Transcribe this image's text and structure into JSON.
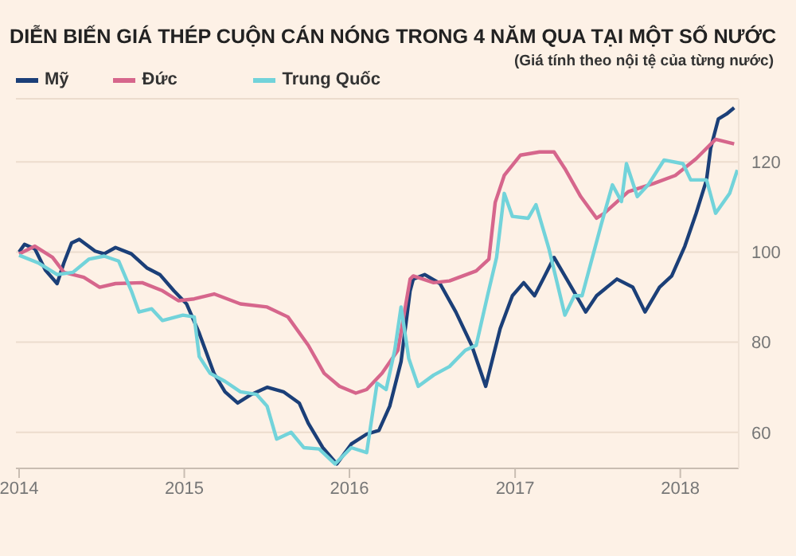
{
  "chart_data": {
    "type": "line",
    "title": "DIỄN BIẾN GIÁ THÉP CUỘN CÁN NÓNG TRONG 4 NĂM QUA TẠI MỘT SỐ NƯỚC",
    "subtitle": "(Giá tính theo nội tệ của từng nước)",
    "xlim": [
      "2013-12-25",
      "2018-05-10"
    ],
    "xticks": [
      {
        "value": "2014-01-01",
        "label": "2014"
      },
      {
        "value": "2015-01-01",
        "label": "2015"
      },
      {
        "value": "2016-01-01",
        "label": "2016"
      },
      {
        "value": "2017-01-01",
        "label": "2017"
      },
      {
        "value": "2018-01-01",
        "label": "2018"
      }
    ],
    "ylim": [
      52,
      134
    ],
    "yticks": [
      60,
      80,
      100,
      120
    ],
    "grid": "y",
    "legend": "top left",
    "marker": "none",
    "line_style": "solid",
    "series": [
      {
        "name": "Mỹ",
        "color": "#1b3f78",
        "x": [
          "2014-01-01",
          "2014-01-13",
          "2014-02-05",
          "2014-02-28",
          "2014-03-26",
          "2014-04-10",
          "2014-04-27",
          "2014-05-14",
          "2014-06-18",
          "2014-07-08",
          "2014-08-02",
          "2014-09-06",
          "2014-10-10",
          "2014-11-08",
          "2014-12-09",
          "2015-01-06",
          "2015-02-03",
          "2015-03-08",
          "2015-04-01",
          "2015-04-29",
          "2015-05-29",
          "2015-07-03",
          "2015-08-08",
          "2015-09-12",
          "2015-10-02",
          "2015-11-03",
          "2015-12-04",
          "2016-01-05",
          "2016-02-08",
          "2016-03-06",
          "2016-03-30",
          "2016-04-24",
          "2016-05-14",
          "2016-05-21",
          "2016-06-15",
          "2016-07-19",
          "2016-08-23",
          "2016-09-27",
          "2016-10-28",
          "2016-11-29",
          "2016-12-26",
          "2017-01-20",
          "2017-02-13",
          "2017-03-04",
          "2017-03-28",
          "2017-04-25",
          "2017-06-06",
          "2017-06-30",
          "2017-08-14",
          "2017-09-18",
          "2017-10-15",
          "2017-11-16",
          "2017-12-13",
          "2018-01-11",
          "2018-02-05",
          "2018-02-28",
          "2018-03-09",
          "2018-03-26",
          "2018-04-13",
          "2018-04-30"
        ],
        "values": [
          100,
          101.7,
          100.7,
          96,
          93,
          97.6,
          102,
          102.8,
          100.2,
          99.6,
          101,
          99.6,
          96.5,
          95,
          91.4,
          88.5,
          82,
          73,
          69,
          66.5,
          68.4,
          70,
          69,
          66.5,
          62,
          56.6,
          53,
          57.4,
          59.6,
          60.4,
          65.8,
          75.7,
          91.4,
          94,
          95,
          93,
          86.7,
          79.3,
          70.2,
          83,
          90.3,
          93.2,
          90.3,
          94,
          98.8,
          94,
          86.7,
          90.3,
          94,
          92.2,
          86.7,
          92.2,
          94.7,
          101.3,
          108.6,
          116,
          123,
          129.5,
          130.6,
          132
        ]
      },
      {
        "name": "Đức",
        "color": "#d6668c",
        "x": [
          "2014-01-01",
          "2014-02-05",
          "2014-03-16",
          "2014-04-10",
          "2014-05-24",
          "2014-06-28",
          "2014-08-02",
          "2014-09-30",
          "2014-11-14",
          "2014-12-19",
          "2015-01-23",
          "2015-03-08",
          "2015-05-05",
          "2015-07-03",
          "2015-08-18",
          "2015-10-02",
          "2015-11-06",
          "2015-12-10",
          "2016-01-15",
          "2016-02-08",
          "2016-03-13",
          "2016-04-17",
          "2016-05-14",
          "2016-05-21",
          "2016-07-05",
          "2016-08-09",
          "2016-10-07",
          "2016-11-04",
          "2016-11-18",
          "2016-12-08",
          "2017-01-13",
          "2017-02-24",
          "2017-03-28",
          "2017-04-21",
          "2017-05-26",
          "2017-06-30",
          "2017-07-17",
          "2017-09-08",
          "2017-11-03",
          "2017-12-21",
          "2018-02-05",
          "2018-03-20",
          "2018-04-30"
        ],
        "values": [
          99.6,
          101.3,
          98.8,
          95.5,
          94.4,
          92.2,
          93,
          93.2,
          91.4,
          89.2,
          89.6,
          90.7,
          88.5,
          87.8,
          85.6,
          79.3,
          73.1,
          70.2,
          68.7,
          69.5,
          73.1,
          78.2,
          94,
          94.7,
          93.2,
          93.6,
          95.8,
          98.4,
          111,
          117,
          121.5,
          122.2,
          122.2,
          118.5,
          112.3,
          107.5,
          108.6,
          113.4,
          115.2,
          117,
          120.7,
          125,
          124
        ]
      },
      {
        "name": "Trung Quốc",
        "color": "#72d3da",
        "x": [
          "2014-01-01",
          "2014-02-12",
          "2014-03-26",
          "2014-04-30",
          "2014-06-04",
          "2014-07-08",
          "2014-08-09",
          "2014-09-06",
          "2014-09-23",
          "2014-10-21",
          "2014-11-14",
          "2014-12-29",
          "2015-01-23",
          "2015-02-03",
          "2015-02-27",
          "2015-04-01",
          "2015-05-05",
          "2015-06-10",
          "2015-07-03",
          "2015-07-24",
          "2015-08-25",
          "2015-09-22",
          "2015-10-26",
          "2015-11-30",
          "2016-01-05",
          "2016-02-08",
          "2016-03-02",
          "2016-03-22",
          "2016-04-10",
          "2016-04-24",
          "2016-05-11",
          "2016-06-01",
          "2016-07-05",
          "2016-08-09",
          "2016-09-13",
          "2016-10-07",
          "2016-11-01",
          "2016-11-21",
          "2016-12-08",
          "2016-12-26",
          "2017-01-30",
          "2017-02-16",
          "2017-03-17",
          "2017-04-21",
          "2017-05-12",
          "2017-05-29",
          "2017-07-10",
          "2017-08-04",
          "2017-08-24",
          "2017-09-04",
          "2017-09-28",
          "2017-10-22",
          "2017-11-26",
          "2018-01-07",
          "2018-01-24",
          "2018-02-28",
          "2018-03-20",
          "2018-04-20",
          "2018-05-07"
        ],
        "values": [
          99.3,
          97.6,
          95,
          95.5,
          98.4,
          99.1,
          98,
          91.4,
          86.7,
          87.4,
          84.8,
          86,
          85.6,
          76.8,
          73.1,
          71.3,
          69,
          68.4,
          65.8,
          58.5,
          60,
          56.6,
          56.3,
          53,
          56.6,
          55.5,
          70.9,
          69.5,
          78.2,
          87.8,
          76.4,
          70.2,
          72.7,
          74.6,
          78.2,
          79.3,
          90.3,
          98.8,
          113,
          107.9,
          107.5,
          110.5,
          100.6,
          86,
          90.3,
          90.3,
          106,
          114.9,
          111.2,
          119.6,
          112.3,
          114.9,
          120.4,
          119.6,
          116,
          116,
          108.6,
          113,
          118.2
        ]
      }
    ]
  }
}
